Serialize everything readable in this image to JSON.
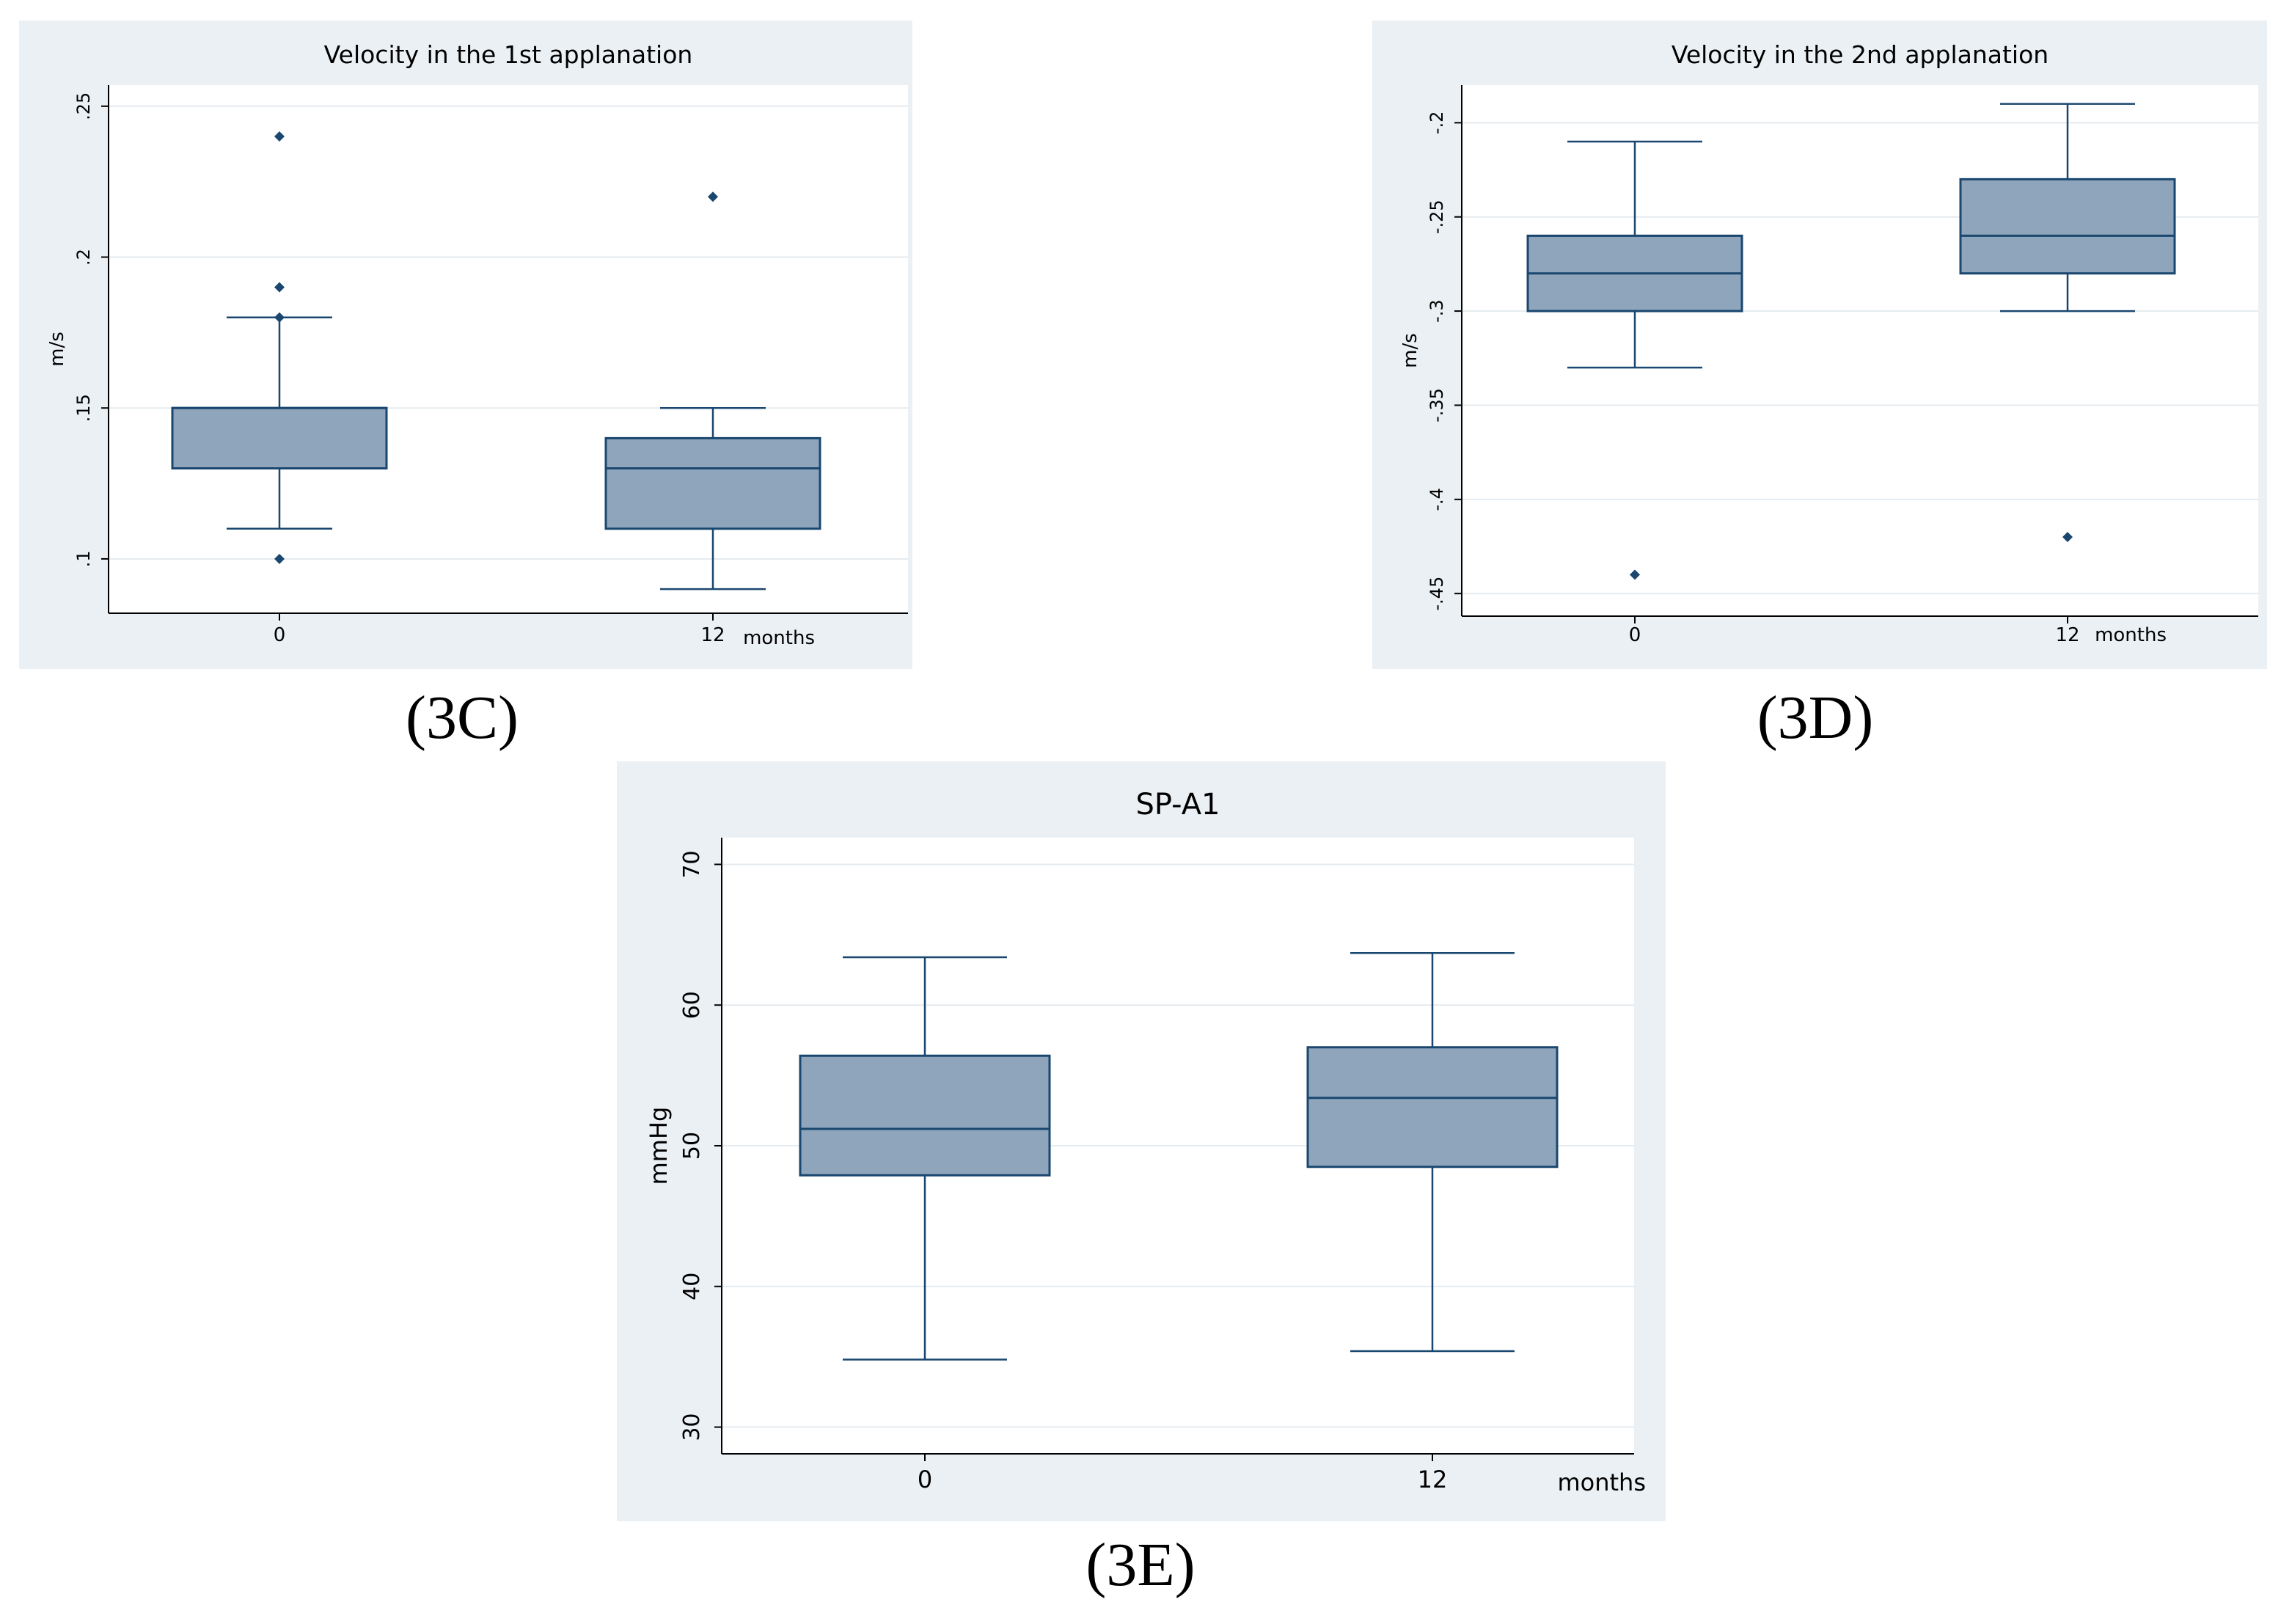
{
  "colors": {
    "panel_bg": "#ebf0f4",
    "plot_bg": "#ffffff",
    "grid": "#e5ebef",
    "axis": "#000000",
    "box_fill": "#8fa5bb",
    "box_stroke": "#1a476f",
    "outlier": "#1a476f"
  },
  "panels": {
    "c": {
      "label": "(3C)"
    },
    "d": {
      "label": "(3D)"
    },
    "e": {
      "label": "(3E)"
    }
  },
  "chart_data": [
    {
      "id": "c",
      "type": "box",
      "title": "Velocity in the 1st applanation",
      "ylabel": "m/s",
      "xlabel": "months",
      "categories": [
        "0",
        "12"
      ],
      "ylim": [
        0.082,
        0.257
      ],
      "yticks": [
        0.1,
        0.15,
        0.2,
        0.25
      ],
      "ytick_labels": [
        ".1",
        ".15",
        ".2",
        ".25"
      ],
      "boxes": [
        {
          "category": "0",
          "whisker_low": 0.11,
          "q1": 0.13,
          "median": 0.15,
          "q3": 0.15,
          "whisker_high": 0.18,
          "outliers": [
            0.24,
            0.19,
            0.18,
            0.1
          ]
        },
        {
          "category": "12",
          "whisker_low": 0.09,
          "q1": 0.11,
          "median": 0.13,
          "q3": 0.14,
          "whisker_high": 0.15,
          "outliers": [
            0.22
          ]
        }
      ]
    },
    {
      "id": "d",
      "type": "box",
      "title": "Velocity in the 2nd applanation",
      "ylabel": "m/s",
      "xlabel": "months",
      "categories": [
        "0",
        "12"
      ],
      "ylim": [
        -0.462,
        -0.18
      ],
      "yticks": [
        -0.2,
        -0.25,
        -0.3,
        -0.35,
        -0.4,
        -0.45
      ],
      "ytick_labels": [
        "-.2",
        "-.25",
        "-.3",
        "-.35",
        "-.4",
        "-.45"
      ],
      "boxes": [
        {
          "category": "0",
          "whisker_low": -0.33,
          "q1": -0.3,
          "median": -0.28,
          "q3": -0.26,
          "whisker_high": -0.21,
          "outliers": [
            -0.44
          ]
        },
        {
          "category": "12",
          "whisker_low": -0.3,
          "q1": -0.28,
          "median": -0.26,
          "q3": -0.23,
          "whisker_high": -0.19,
          "outliers": [
            -0.42
          ]
        }
      ]
    },
    {
      "id": "e",
      "type": "box",
      "title": "SP-A1",
      "ylabel": "mmHg",
      "xlabel": "months",
      "categories": [
        "0",
        "12"
      ],
      "ylim": [
        28.1,
        71.9
      ],
      "yticks": [
        30,
        40,
        50,
        60,
        70
      ],
      "ytick_labels": [
        "30",
        "40",
        "50",
        "60",
        "70"
      ],
      "boxes": [
        {
          "category": "0",
          "whisker_low": 34.8,
          "q1": 47.9,
          "median": 51.2,
          "q3": 56.4,
          "whisker_high": 63.4,
          "outliers": []
        },
        {
          "category": "12",
          "whisker_low": 35.4,
          "q1": 48.5,
          "median": 53.4,
          "q3": 57.0,
          "whisker_high": 63.7,
          "outliers": []
        }
      ]
    }
  ]
}
